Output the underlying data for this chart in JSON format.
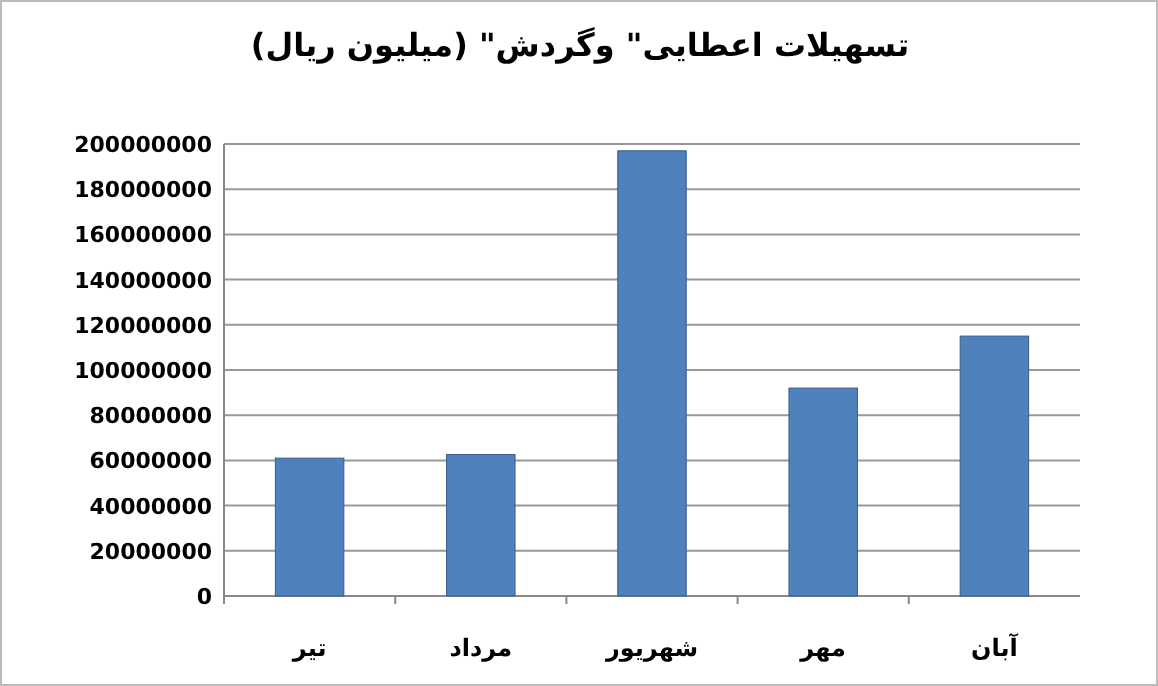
{
  "chart_data": {
    "type": "bar",
    "title": "تسهیلات اعطایی\" وگردش\" (میلیون ریال)",
    "categories": [
      "تیر",
      "مرداد",
      "شهریور",
      "مهر",
      "آبان"
    ],
    "values": [
      61000000,
      62600000,
      197000000,
      92000000,
      115000000
    ],
    "color": "#4f81bd",
    "ylim": [
      0,
      200000000
    ],
    "yticks": [
      0,
      20000000,
      40000000,
      60000000,
      80000000,
      100000000,
      120000000,
      140000000,
      160000000,
      180000000,
      200000000
    ],
    "grid": "y"
  }
}
